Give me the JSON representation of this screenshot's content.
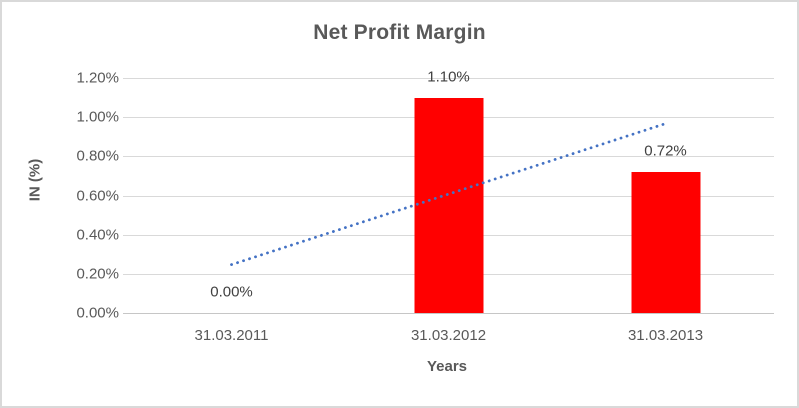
{
  "chart_data": {
    "type": "bar",
    "title": "Net Profit Margin",
    "xlabel": "Years",
    "ylabel": "IN (%)",
    "categories": [
      "31.03.2011",
      "31.03.2012",
      "31.03.2013"
    ],
    "series": [
      {
        "name": "Net Profit Margin",
        "type": "bar",
        "values": [
          0.0,
          1.1,
          0.72
        ],
        "data_labels": [
          "0.00%",
          "1.10%",
          "0.72%"
        ],
        "color": "#FF0000"
      },
      {
        "name": "linear-trendline",
        "type": "dotted-line",
        "values": [
          0.247,
          0.607,
          0.967
        ],
        "color": "#4472C4"
      }
    ],
    "ylim": [
      0,
      1.2
    ],
    "ytick_values": [
      0,
      0.2,
      0.4,
      0.6,
      0.8,
      1.0,
      1.2
    ],
    "ytick_labels": [
      "0.00%",
      "0.20%",
      "0.40%",
      "0.60%",
      "0.80%",
      "1.00%",
      "1.20%"
    ],
    "grid": true,
    "legend": "none"
  },
  "colors": {
    "bar": "#FF0000",
    "trendline": "#4472C4",
    "gridline": "#D9D9D9",
    "axis_line": "#C6C6C6",
    "axis_text": "#595959",
    "title_text": "#595959",
    "data_label_text": "#404040",
    "frame_border": "#D9D9D9",
    "background": "#FFFFFF"
  }
}
